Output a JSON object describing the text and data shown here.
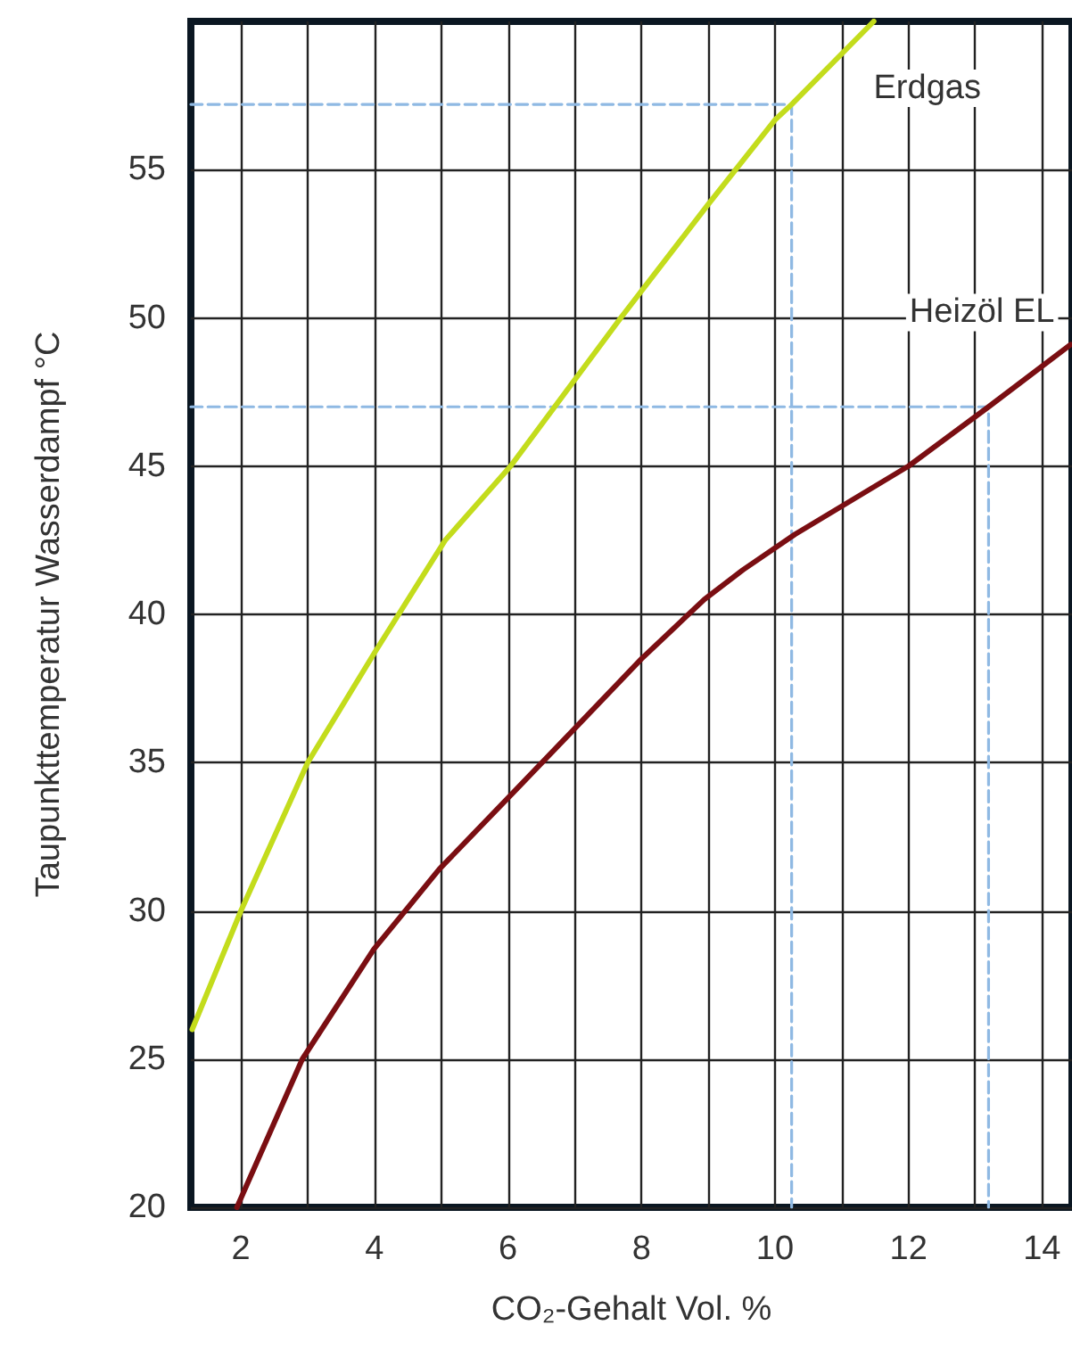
{
  "chart_data": {
    "type": "line",
    "xlabel": "CO₂-Gehalt Vol. %",
    "ylabel": "Taupunkttemperatur Wasserdampf °C",
    "xlim": [
      1.25,
      14.45
    ],
    "ylim": [
      20,
      60
    ],
    "xticks": [
      2,
      {
        "value": 3,
        "label": null
      },
      4,
      {
        "value": 5,
        "label": null
      },
      6,
      {
        "value": 7,
        "label": null
      },
      8,
      {
        "value": 9,
        "label": null
      },
      10,
      {
        "value": 11,
        "label": null
      },
      12,
      {
        "value": 13,
        "label": null
      },
      14
    ],
    "yticks": [
      20,
      25,
      30,
      35,
      40,
      45,
      50,
      55
    ],
    "grid": true,
    "marker": "none",
    "series": [
      {
        "type": "line",
        "line_style": "dashed",
        "color": "#8fb9e3",
        "x": [
          1.25,
          10.25,
          10.25
        ],
        "values": [
          57.2,
          57.2,
          20
        ]
      },
      {
        "type": "line",
        "line_style": "dashed",
        "color": "#8fb9e3",
        "x": [
          1.25,
          13.2,
          13.2
        ],
        "values": [
          47,
          47,
          20
        ]
      },
      {
        "name": "Erdgas",
        "color": "#c3dc1c",
        "line_style": "solid",
        "x": [
          1.27,
          2,
          3,
          4,
          5.06,
          6.04,
          7.69,
          8.99,
          10.01,
          10.25,
          11.48
        ],
        "values": [
          26,
          30,
          35,
          38.7,
          42.5,
          45,
          50,
          53.8,
          56.7,
          57.2,
          60
        ]
      },
      {
        "name": "Heizöl EL",
        "color": "#7a0e12",
        "line_style": "solid",
        "x": [
          1.94,
          2.92,
          3.99,
          4.97,
          6.04,
          6.98,
          8,
          8.94,
          9.52,
          10.3,
          12,
          13.2,
          14.43
        ],
        "values": [
          20,
          25,
          28.7,
          31.4,
          33.9,
          36.1,
          38.5,
          40.5,
          41.5,
          42.7,
          45,
          47,
          49.1
        ]
      }
    ]
  }
}
